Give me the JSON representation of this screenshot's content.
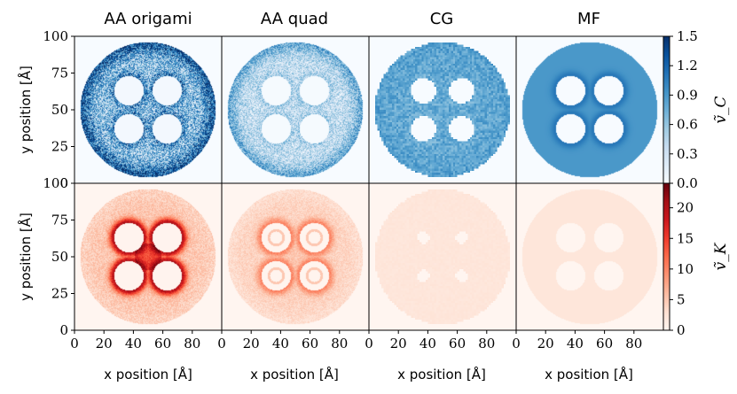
{
  "chart_data": {
    "type": "heatmap",
    "columns": [
      "AA origami",
      "AA quad",
      "CG",
      "MF"
    ],
    "rows": [
      {
        "name": "C",
        "colormap": "Blues",
        "colorbar_label": "ṽ_C",
        "clim": [
          0.0,
          1.5
        ],
        "colorbar_ticks": [
          "0.0",
          "0.3",
          "0.6",
          "0.9",
          "1.2",
          "1.5"
        ]
      },
      {
        "name": "K",
        "colormap": "Reds",
        "colorbar_label": "ṽ_K",
        "clim": [
          0,
          24
        ],
        "colorbar_ticks": [
          "0",
          "5",
          "10",
          "15",
          "20"
        ]
      }
    ],
    "xlabel": "x position [Å]",
    "ylabel": "y position [Å]",
    "xlim": [
      0,
      100
    ],
    "ylim": [
      0,
      100
    ],
    "xticks": [
      "0",
      "20",
      "40",
      "60",
      "80"
    ],
    "yticks": [
      "0",
      "25",
      "50",
      "75",
      "100"
    ],
    "pore_radius": 46,
    "cylinder_centers": [
      [
        37,
        63
      ],
      [
        63,
        63
      ],
      [
        37,
        37
      ],
      [
        63,
        37
      ]
    ],
    "cylinder_radius": 10,
    "panels": [
      {
        "row": "C",
        "column": "AA origami",
        "rim": 1.3,
        "bulk": 0.6,
        "near_cyl": 1.0,
        "between": 0.7,
        "noise": 0.6
      },
      {
        "row": "C",
        "column": "AA quad",
        "rim": 0.8,
        "bulk": 0.35,
        "near_cyl": 0.5,
        "between": 0.45,
        "noise": 0.35
      },
      {
        "row": "C",
        "column": "CG",
        "rim": 0.85,
        "bulk": 0.8,
        "near_cyl": 0.75,
        "between": 0.8,
        "noise": 0.15
      },
      {
        "row": "C",
        "column": "MF",
        "rim": 0.9,
        "bulk": 0.9,
        "near_cyl": 1.1,
        "between": 0.9,
        "noise": 0.0
      },
      {
        "row": "K",
        "column": "AA origami",
        "rim": 4.0,
        "bulk": 5.0,
        "near_cyl": 20.0,
        "between": 23.0,
        "noise": 2.0
      },
      {
        "row": "K",
        "column": "AA quad",
        "rim": 3.0,
        "bulk": 4.0,
        "near_cyl": 10.0,
        "between": 8.0,
        "noise": 1.5
      },
      {
        "row": "K",
        "column": "CG",
        "rim": 2.2,
        "bulk": 2.2,
        "near_cyl": 2.2,
        "between": 2.2,
        "noise": 0.3
      },
      {
        "row": "K",
        "column": "MF",
        "rim": 2.2,
        "bulk": 2.2,
        "near_cyl": 2.2,
        "between": 2.2,
        "noise": 0.0
      }
    ]
  },
  "colors": {
    "blues": [
      "#f7fbff",
      "#deebf7",
      "#c6dbef",
      "#9ecae1",
      "#6baed6",
      "#4292c6",
      "#2171b5",
      "#08519c",
      "#08306b"
    ],
    "reds": [
      "#fff5f0",
      "#fee0d2",
      "#fcbba1",
      "#fc9272",
      "#fb6a4a",
      "#ef3b2c",
      "#cb181d",
      "#a50f15",
      "#67000d"
    ]
  }
}
